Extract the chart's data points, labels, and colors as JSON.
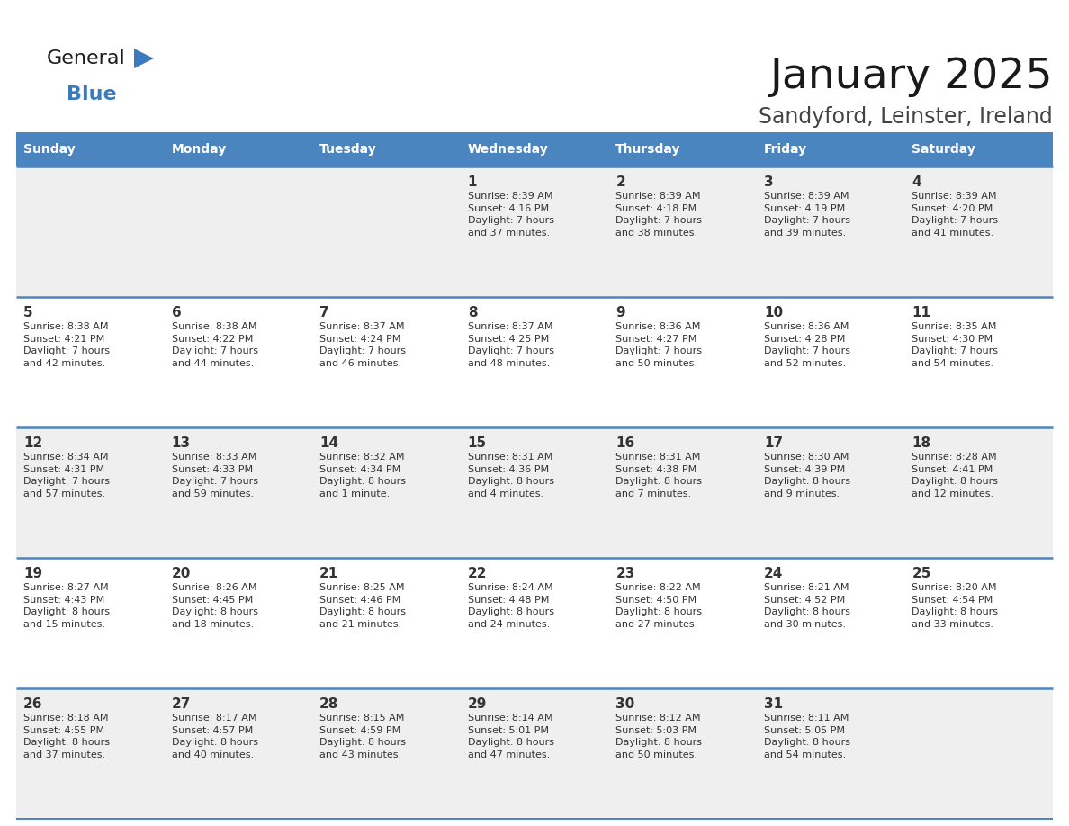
{
  "title": "January 2025",
  "subtitle": "Sandyford, Leinster, Ireland",
  "header_bg": "#4a85bf",
  "header_text_color": "#ffffff",
  "days_of_week": [
    "Sunday",
    "Monday",
    "Tuesday",
    "Wednesday",
    "Thursday",
    "Friday",
    "Saturday"
  ],
  "row_bg_odd": "#efefef",
  "row_bg_even": "#ffffff",
  "cell_text_color": "#333333",
  "grid_line_color": "#4a85bf",
  "calendar_data": [
    [
      null,
      null,
      null,
      {
        "day": 1,
        "sunrise": "8:39 AM",
        "sunset": "4:16 PM",
        "daylight": "7 hours\nand 37 minutes."
      },
      {
        "day": 2,
        "sunrise": "8:39 AM",
        "sunset": "4:18 PM",
        "daylight": "7 hours\nand 38 minutes."
      },
      {
        "day": 3,
        "sunrise": "8:39 AM",
        "sunset": "4:19 PM",
        "daylight": "7 hours\nand 39 minutes."
      },
      {
        "day": 4,
        "sunrise": "8:39 AM",
        "sunset": "4:20 PM",
        "daylight": "7 hours\nand 41 minutes."
      }
    ],
    [
      {
        "day": 5,
        "sunrise": "8:38 AM",
        "sunset": "4:21 PM",
        "daylight": "7 hours\nand 42 minutes."
      },
      {
        "day": 6,
        "sunrise": "8:38 AM",
        "sunset": "4:22 PM",
        "daylight": "7 hours\nand 44 minutes."
      },
      {
        "day": 7,
        "sunrise": "8:37 AM",
        "sunset": "4:24 PM",
        "daylight": "7 hours\nand 46 minutes."
      },
      {
        "day": 8,
        "sunrise": "8:37 AM",
        "sunset": "4:25 PM",
        "daylight": "7 hours\nand 48 minutes."
      },
      {
        "day": 9,
        "sunrise": "8:36 AM",
        "sunset": "4:27 PM",
        "daylight": "7 hours\nand 50 minutes."
      },
      {
        "day": 10,
        "sunrise": "8:36 AM",
        "sunset": "4:28 PM",
        "daylight": "7 hours\nand 52 minutes."
      },
      {
        "day": 11,
        "sunrise": "8:35 AM",
        "sunset": "4:30 PM",
        "daylight": "7 hours\nand 54 minutes."
      }
    ],
    [
      {
        "day": 12,
        "sunrise": "8:34 AM",
        "sunset": "4:31 PM",
        "daylight": "7 hours\nand 57 minutes."
      },
      {
        "day": 13,
        "sunrise": "8:33 AM",
        "sunset": "4:33 PM",
        "daylight": "7 hours\nand 59 minutes."
      },
      {
        "day": 14,
        "sunrise": "8:32 AM",
        "sunset": "4:34 PM",
        "daylight": "8 hours\nand 1 minute."
      },
      {
        "day": 15,
        "sunrise": "8:31 AM",
        "sunset": "4:36 PM",
        "daylight": "8 hours\nand 4 minutes."
      },
      {
        "day": 16,
        "sunrise": "8:31 AM",
        "sunset": "4:38 PM",
        "daylight": "8 hours\nand 7 minutes."
      },
      {
        "day": 17,
        "sunrise": "8:30 AM",
        "sunset": "4:39 PM",
        "daylight": "8 hours\nand 9 minutes."
      },
      {
        "day": 18,
        "sunrise": "8:28 AM",
        "sunset": "4:41 PM",
        "daylight": "8 hours\nand 12 minutes."
      }
    ],
    [
      {
        "day": 19,
        "sunrise": "8:27 AM",
        "sunset": "4:43 PM",
        "daylight": "8 hours\nand 15 minutes."
      },
      {
        "day": 20,
        "sunrise": "8:26 AM",
        "sunset": "4:45 PM",
        "daylight": "8 hours\nand 18 minutes."
      },
      {
        "day": 21,
        "sunrise": "8:25 AM",
        "sunset": "4:46 PM",
        "daylight": "8 hours\nand 21 minutes."
      },
      {
        "day": 22,
        "sunrise": "8:24 AM",
        "sunset": "4:48 PM",
        "daylight": "8 hours\nand 24 minutes."
      },
      {
        "day": 23,
        "sunrise": "8:22 AM",
        "sunset": "4:50 PM",
        "daylight": "8 hours\nand 27 minutes."
      },
      {
        "day": 24,
        "sunrise": "8:21 AM",
        "sunset": "4:52 PM",
        "daylight": "8 hours\nand 30 minutes."
      },
      {
        "day": 25,
        "sunrise": "8:20 AM",
        "sunset": "4:54 PM",
        "daylight": "8 hours\nand 33 minutes."
      }
    ],
    [
      {
        "day": 26,
        "sunrise": "8:18 AM",
        "sunset": "4:55 PM",
        "daylight": "8 hours\nand 37 minutes."
      },
      {
        "day": 27,
        "sunrise": "8:17 AM",
        "sunset": "4:57 PM",
        "daylight": "8 hours\nand 40 minutes."
      },
      {
        "day": 28,
        "sunrise": "8:15 AM",
        "sunset": "4:59 PM",
        "daylight": "8 hours\nand 43 minutes."
      },
      {
        "day": 29,
        "sunrise": "8:14 AM",
        "sunset": "5:01 PM",
        "daylight": "8 hours\nand 47 minutes."
      },
      {
        "day": 30,
        "sunrise": "8:12 AM",
        "sunset": "5:03 PM",
        "daylight": "8 hours\nand 50 minutes."
      },
      {
        "day": 31,
        "sunrise": "8:11 AM",
        "sunset": "5:05 PM",
        "daylight": "8 hours\nand 54 minutes."
      },
      null
    ]
  ],
  "logo_color_general": "#1a1a1a",
  "logo_color_blue": "#3a7bbf",
  "logo_triangle_color": "#3a7bbf",
  "title_color": "#1a1a1a",
  "subtitle_color": "#444444"
}
